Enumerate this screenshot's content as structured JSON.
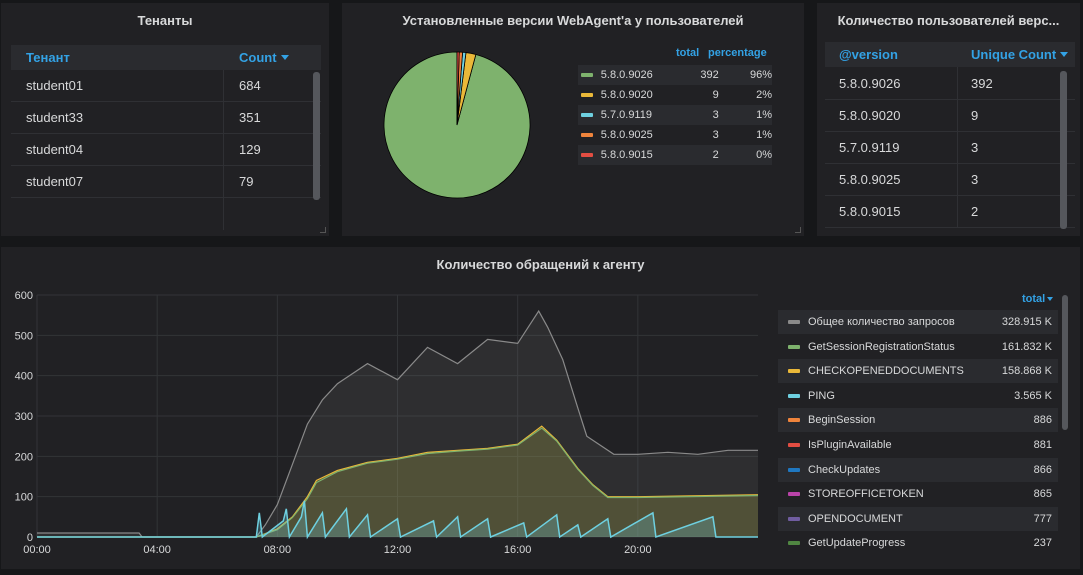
{
  "tenants_panel": {
    "title": "Тенанты",
    "col1": "Тенант",
    "col2": "Count",
    "sort_icon": "caret-down-icon",
    "rows": [
      {
        "name": "student01",
        "count": "684"
      },
      {
        "name": "student33",
        "count": "351"
      },
      {
        "name": "student04",
        "count": "129"
      },
      {
        "name": "student07",
        "count": "79"
      }
    ]
  },
  "pie_panel": {
    "title": "Установленные версии WebAgent'a у пользователей",
    "col_total": "total",
    "col_percentage": "percentage",
    "items": [
      {
        "version": "5.8.0.9026",
        "total": "392",
        "pct": "96%",
        "color": "#7eb26d"
      },
      {
        "version": "5.8.0.9020",
        "total": "9",
        "pct": "2%",
        "color": "#eab839"
      },
      {
        "version": "5.7.0.9119",
        "total": "3",
        "pct": "1%",
        "color": "#6ed0e0"
      },
      {
        "version": "5.8.0.9025",
        "total": "3",
        "pct": "1%",
        "color": "#ef843c"
      },
      {
        "version": "5.8.0.9015",
        "total": "2",
        "pct": "0%",
        "color": "#e24d42"
      }
    ]
  },
  "users_panel": {
    "title": "Количество пользователей верс...",
    "col1": "@version",
    "col2": "Unique Count",
    "rows": [
      {
        "version": "5.8.0.9026",
        "count": "392"
      },
      {
        "version": "5.8.0.9020",
        "count": "9"
      },
      {
        "version": "5.7.0.9119",
        "count": "3"
      },
      {
        "version": "5.8.0.9025",
        "count": "3"
      },
      {
        "version": "5.8.0.9015",
        "count": "2"
      }
    ]
  },
  "graph_panel": {
    "title": "Количество обращений к агенту",
    "legend_header": "total",
    "legend": [
      {
        "name": "Общее количество запросов",
        "value": "328.915 K",
        "color": "#8a8a8a"
      },
      {
        "name": "GetSessionRegistrationStatus",
        "value": "161.832 K",
        "color": "#7eb26d"
      },
      {
        "name": "CHECKOPENEDDOCUMENTS",
        "value": "158.868 K",
        "color": "#eab839"
      },
      {
        "name": "PING",
        "value": "3.565 K",
        "color": "#6ed0e0"
      },
      {
        "name": "BeginSession",
        "value": "886",
        "color": "#ef843c"
      },
      {
        "name": "IsPluginAvailable",
        "value": "881",
        "color": "#e24d42"
      },
      {
        "name": "CheckUpdates",
        "value": "866",
        "color": "#1f78c1"
      },
      {
        "name": "STOREOFFICETOKEN",
        "value": "865",
        "color": "#ba43a9"
      },
      {
        "name": "OPENDOCUMENT",
        "value": "777",
        "color": "#705da0"
      },
      {
        "name": "GetUpdateProgress",
        "value": "237",
        "color": "#508642"
      }
    ]
  },
  "chart_data": [
    {
      "type": "pie",
      "title": "Установленные версии WebAgent'a у пользователей",
      "categories": [
        "5.8.0.9026",
        "5.8.0.9020",
        "5.7.0.9119",
        "5.8.0.9025",
        "5.8.0.9015"
      ],
      "values": [
        392,
        9,
        3,
        3,
        2
      ],
      "legend": "right"
    },
    {
      "type": "line",
      "title": "Количество обращений к агенту",
      "x_ticks": [
        "00:00",
        "04:00",
        "08:00",
        "12:00",
        "16:00",
        "20:00"
      ],
      "x_hours": [
        0,
        24
      ],
      "ylim": [
        0,
        600
      ],
      "y_ticks": [
        0,
        100,
        200,
        300,
        400,
        500,
        600
      ],
      "grid": true,
      "legend": "right",
      "series": [
        {
          "name": "Общее количество запросов",
          "x": [
            0,
            3.4,
            3.5,
            7.3,
            7.6,
            8.0,
            8.5,
            9.0,
            9.5,
            10,
            11,
            12,
            13,
            14,
            15,
            16,
            16.7,
            17,
            17.5,
            18,
            18.3,
            18.7,
            19.2,
            19.5,
            20,
            21,
            22,
            23,
            24
          ],
          "values": [
            10,
            10,
            0,
            0,
            30,
            80,
            180,
            280,
            340,
            380,
            430,
            390,
            470,
            430,
            490,
            480,
            560,
            520,
            440,
            320,
            250,
            230,
            205,
            205,
            205,
            210,
            205,
            215,
            215
          ]
        },
        {
          "name": "CHECKOPENEDDOCUMENTS",
          "x": [
            0,
            7.3,
            8.0,
            8.5,
            9.0,
            9.3,
            10,
            11,
            12,
            13,
            14,
            15,
            16,
            16.8,
            17.3,
            18.0,
            18.5,
            19.0,
            19.3,
            20,
            24
          ],
          "values": [
            0,
            0,
            20,
            50,
            100,
            140,
            165,
            185,
            195,
            210,
            215,
            220,
            230,
            275,
            240,
            170,
            130,
            100,
            100,
            100,
            105
          ]
        },
        {
          "name": "GetSessionRegistrationStatus",
          "x": [
            0,
            7.3,
            8.0,
            8.5,
            9.0,
            9.3,
            10,
            11,
            12,
            13,
            14,
            15,
            16,
            16.8,
            17.3,
            18.0,
            18.5,
            19.0,
            19.3,
            20,
            24
          ],
          "values": [
            0,
            0,
            18,
            48,
            95,
            135,
            162,
            183,
            193,
            207,
            213,
            218,
            228,
            270,
            238,
            168,
            128,
            98,
            98,
            98,
            103
          ]
        },
        {
          "name": "PING",
          "x": [
            0,
            7.3,
            7.4,
            7.5,
            8.2,
            8.3,
            8.4,
            8.8,
            8.9,
            9.0,
            9.5,
            9.6,
            10.3,
            10.4,
            11.0,
            11.1,
            12.0,
            12.1,
            13.2,
            13.3,
            14.0,
            14.1,
            15.0,
            15.1,
            16.2,
            16.3,
            17.3,
            17.4,
            18.0,
            18.1,
            19.0,
            19.1,
            20.5,
            20.6,
            22.5,
            22.6,
            24
          ],
          "values": [
            0,
            0,
            60,
            0,
            40,
            70,
            0,
            50,
            90,
            0,
            60,
            0,
            70,
            0,
            55,
            0,
            45,
            0,
            40,
            0,
            50,
            0,
            45,
            0,
            35,
            0,
            55,
            0,
            30,
            0,
            45,
            0,
            60,
            0,
            50,
            0,
            0
          ]
        }
      ]
    }
  ]
}
